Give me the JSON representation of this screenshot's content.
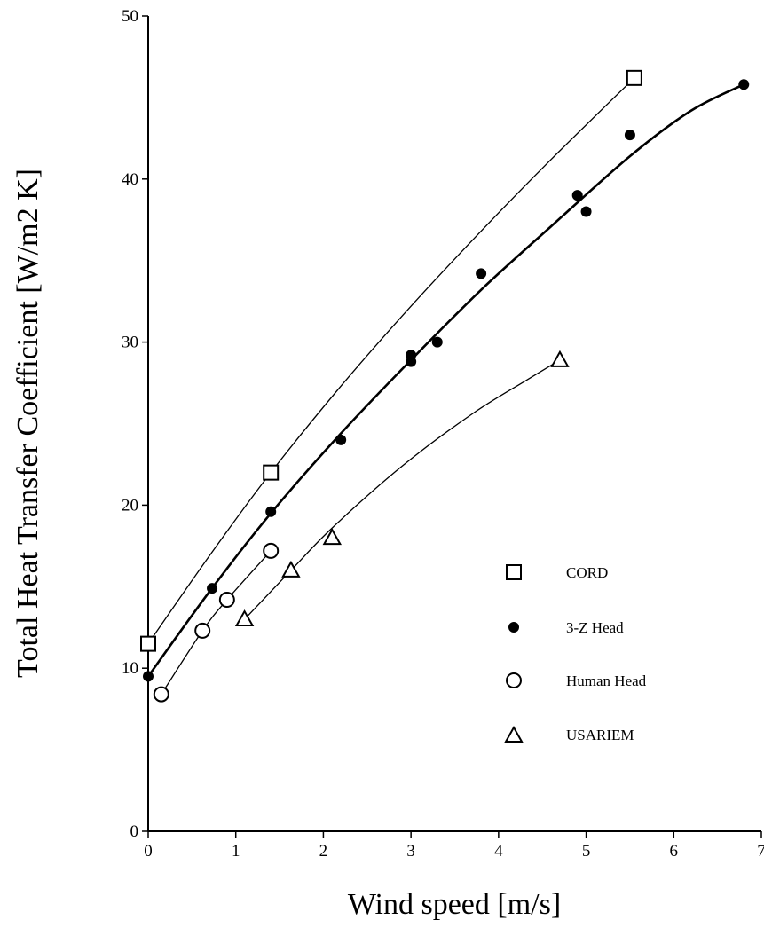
{
  "chart_data": {
    "type": "scatter",
    "title": "",
    "xlabel": "Wind speed [m/s]",
    "ylabel": "Total Heat Transfer Coefficient [W/m2 K]",
    "xlim": [
      0,
      7
    ],
    "ylim": [
      0,
      50
    ],
    "xticks": [
      0,
      1,
      2,
      3,
      4,
      5,
      6,
      7
    ],
    "yticks": [
      0,
      10,
      20,
      30,
      40,
      50
    ],
    "xtick_labels": [
      "0",
      "1",
      "2",
      "3",
      "4",
      "5",
      "6",
      "7"
    ],
    "ytick_labels": [
      "0",
      "10",
      "20",
      "30",
      "40",
      "50"
    ],
    "grid": false,
    "legend_position": "lower-right",
    "series": [
      {
        "name": "CORD",
        "marker": "open-square",
        "x": [
          0.0,
          1.4,
          5.55
        ],
        "y": [
          11.5,
          22.0,
          46.2
        ],
        "fit_curve": [
          [
            0.0,
            11.5
          ],
          [
            0.7,
            16.9
          ],
          [
            1.4,
            22.0
          ],
          [
            2.2,
            27.3
          ],
          [
            3.0,
            32.2
          ],
          [
            3.8,
            36.8
          ],
          [
            4.6,
            41.2
          ],
          [
            5.55,
            46.2
          ]
        ],
        "fit_stroke_width": 1.3
      },
      {
        "name": "3-Z Head",
        "marker": "filled-circle",
        "x": [
          0.0,
          0.73,
          1.4,
          2.2,
          3.0,
          3.0,
          3.3,
          3.8,
          4.9,
          5.0,
          5.5,
          6.8
        ],
        "y": [
          9.5,
          14.9,
          19.6,
          24.0,
          28.8,
          29.2,
          30.0,
          34.2,
          39.0,
          38.0,
          42.7,
          45.8
        ],
        "fit_curve": [
          [
            0.0,
            9.5
          ],
          [
            0.7,
            14.7
          ],
          [
            1.4,
            19.5
          ],
          [
            2.2,
            24.4
          ],
          [
            3.0,
            28.9
          ],
          [
            3.8,
            33.2
          ],
          [
            4.6,
            37.1
          ],
          [
            5.5,
            41.4
          ],
          [
            6.2,
            44.2
          ],
          [
            6.8,
            45.8
          ]
        ],
        "fit_stroke_width": 2.6
      },
      {
        "name": "Human Head",
        "marker": "open-circle",
        "x": [
          0.15,
          0.62,
          0.9,
          1.4
        ],
        "y": [
          8.4,
          12.3,
          14.2,
          17.2
        ],
        "fit_curve": [
          [
            0.15,
            8.4
          ],
          [
            0.62,
            12.3
          ],
          [
            0.9,
            14.2
          ],
          [
            1.4,
            17.2
          ]
        ],
        "fit_stroke_width": 1.3
      },
      {
        "name": "USARIEM",
        "marker": "open-triangle",
        "x": [
          1.1,
          1.63,
          2.1,
          4.7
        ],
        "y": [
          13.0,
          16.0,
          18.0,
          28.9
        ],
        "fit_curve": [
          [
            1.1,
            13.0
          ],
          [
            1.63,
            16.0
          ],
          [
            2.1,
            18.6
          ],
          [
            2.9,
            22.4
          ],
          [
            3.7,
            25.6
          ],
          [
            4.3,
            27.6
          ],
          [
            4.7,
            28.9
          ]
        ],
        "fit_stroke_width": 1.3
      }
    ]
  }
}
